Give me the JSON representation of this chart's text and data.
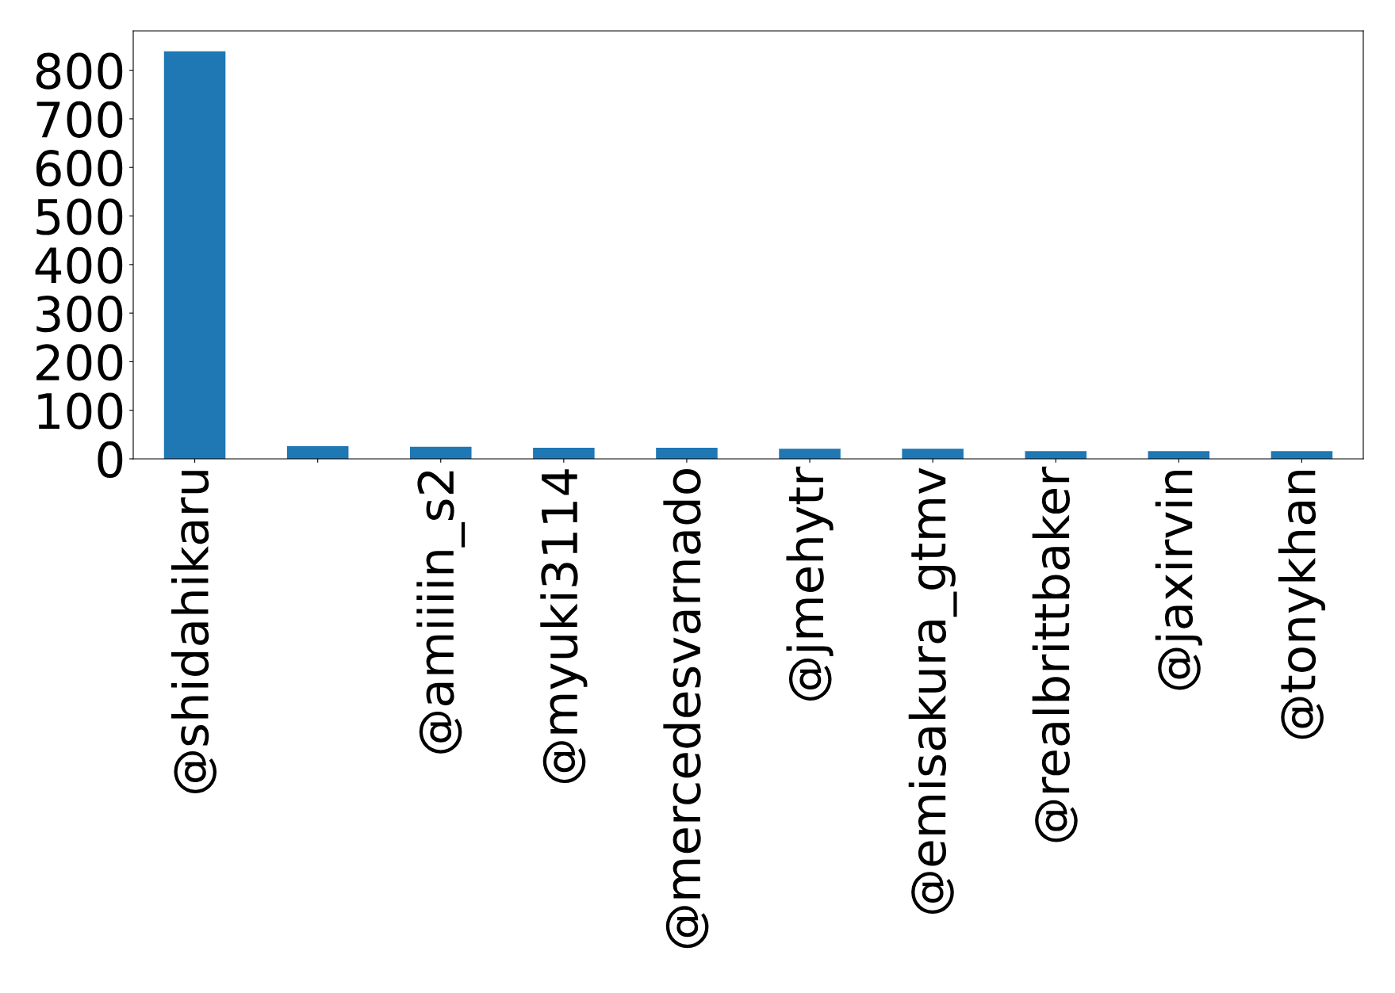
{
  "chart_data": {
    "type": "bar",
    "categories": [
      "@shidahikaru",
      null,
      "@amiiiin_s2",
      "@myuki3114",
      "@mercedesvarnado",
      "@jmehytr",
      "@emisakura_gtmv",
      "@realbrittbaker",
      "@jaxirvin",
      "@tonykhan"
    ],
    "values": [
      839,
      26,
      25,
      23,
      23,
      21,
      21,
      16,
      16,
      16
    ],
    "color": "#1f77b4",
    "ylim": [
      0,
      881
    ],
    "yticks": [
      0,
      100,
      200,
      300,
      400,
      500,
      600,
      700,
      800
    ],
    "grid": false,
    "legend": false
  }
}
